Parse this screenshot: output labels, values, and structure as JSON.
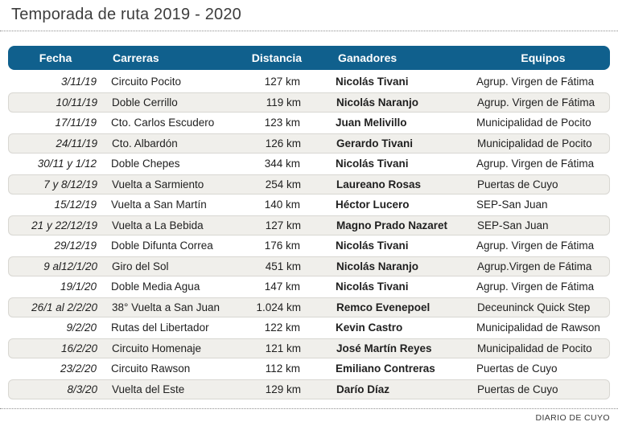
{
  "title": "Temporada de ruta 2019 - 2020",
  "source_credit": "DIARIO DE CUYO",
  "colors": {
    "header_bg": "#10608d",
    "header_text": "#ffffff",
    "stripe_bg": "#f0efeb",
    "stripe_border": "#d8d7d2",
    "body_text": "#1f1f1f",
    "title_text": "#3d3d3d"
  },
  "chart_data": {
    "type": "table",
    "title": "Temporada de ruta 2019 - 2020",
    "columns": [
      "Fecha",
      "Carreras",
      "Distancia",
      "Ganadores",
      "Equipos"
    ],
    "rows": [
      [
        "3/11/19",
        "Circuito Pocito",
        "127 km",
        "Nicolás Tivani",
        "Agrup. Virgen de Fátima"
      ],
      [
        "10/11/19",
        "Doble Cerrillo",
        "119 km",
        "Nicolás Naranjo",
        "Agrup. Virgen de Fátima"
      ],
      [
        "17/11/19",
        "Cto. Carlos Escudero",
        "123 km",
        "Juan Melivillo",
        "Municipalidad de Pocito"
      ],
      [
        "24/11/19",
        "Cto. Albardón",
        "126 km",
        "Gerardo Tivani",
        "Municipalidad de Pocito"
      ],
      [
        "30/11 y 1/12",
        "Doble Chepes",
        "344 km",
        "Nicolás Tivani",
        "Agrup. Virgen de Fátima"
      ],
      [
        "7 y 8/12/19",
        "Vuelta a Sarmiento",
        "254 km",
        "Laureano Rosas",
        "Puertas de Cuyo"
      ],
      [
        "15/12/19",
        "Vuelta a San Martín",
        "140 km",
        "Héctor Lucero",
        "SEP-San Juan"
      ],
      [
        "21 y 22/12/19",
        "Vuelta a La Bebida",
        "127 km",
        "Magno Prado Nazaret",
        "SEP-San Juan"
      ],
      [
        "29/12/19",
        "Doble Difunta Correa",
        "176 km",
        "Nicolás Tivani",
        "Agrup. Virgen de Fátima"
      ],
      [
        "9 al12/1/20",
        "Giro del Sol",
        "451 km",
        "Nicolás Naranjo",
        "Agrup.Virgen de Fátima"
      ],
      [
        "19/1/20",
        "Doble Media Agua",
        "147 km",
        "Nicolás Tivani",
        "Agrup. Virgen de Fátima"
      ],
      [
        "26/1 al 2/2/20",
        "38° Vuelta a San Juan",
        "1.024 km",
        "Remco Evenepoel",
        "Deceuninck Quick Step"
      ],
      [
        "9/2/20",
        "Rutas del Libertador",
        "122 km",
        "Kevin Castro",
        "Municipalidad de Rawson"
      ],
      [
        "16/2/20",
        "Circuito Homenaje",
        "121 km",
        "José Martín Reyes",
        "Municipalidad de Pocito"
      ],
      [
        "23/2/20",
        "Circuito Rawson",
        "112 km",
        "Emiliano Contreras",
        "Puertas de Cuyo"
      ],
      [
        "8/3/20",
        "Vuelta del Este",
        "129 km",
        "Darío Díaz",
        "Puertas de Cuyo"
      ]
    ]
  }
}
